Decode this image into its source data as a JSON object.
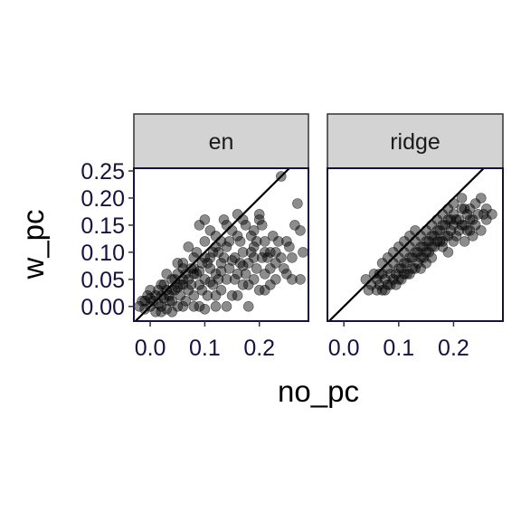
{
  "chart_data": {
    "type": "scatter",
    "xlabel": "no_pc",
    "ylabel": "w_pc",
    "xlim": [
      -0.03,
      0.29
    ],
    "ylim": [
      -0.027,
      0.255
    ],
    "x_ticks": [
      "0.0",
      "0.1",
      "0.2"
    ],
    "y_ticks": [
      "0.00",
      "0.05",
      "0.10",
      "0.15",
      "0.20",
      "0.25"
    ],
    "reference_line": "identity y = x",
    "point_color": "#000000",
    "point_opacity": 0.45,
    "strip_fill": "#d3d3d3",
    "panel_border_color": "#1a1040",
    "panels": [
      {
        "name": "en",
        "points": [
          [
            -0.02,
            0.0
          ],
          [
            -0.015,
            0.01
          ],
          [
            -0.01,
            -0.005
          ],
          [
            -0.005,
            0.02
          ],
          [
            0.0,
            0.0
          ],
          [
            0.0,
            0.03
          ],
          [
            0.005,
            0.01
          ],
          [
            0.01,
            -0.01
          ],
          [
            0.01,
            0.02
          ],
          [
            0.015,
            0.005
          ],
          [
            0.02,
            0.04
          ],
          [
            0.02,
            0.0
          ],
          [
            0.025,
            0.015
          ],
          [
            0.03,
            0.03
          ],
          [
            0.03,
            -0.005
          ],
          [
            0.035,
            0.02
          ],
          [
            0.04,
            0.05
          ],
          [
            0.04,
            0.01
          ],
          [
            0.045,
            0.03
          ],
          [
            0.05,
            0.0
          ],
          [
            0.05,
            0.06
          ],
          [
            0.055,
            0.02
          ],
          [
            0.06,
            0.04
          ],
          [
            0.06,
            0.08
          ],
          [
            0.065,
            0.01
          ],
          [
            0.07,
            0.05
          ],
          [
            0.07,
            0.03
          ],
          [
            0.075,
            0.07
          ],
          [
            0.08,
            0.02
          ],
          [
            0.08,
            0.06
          ],
          [
            0.085,
            0.1
          ],
          [
            0.09,
            0.04
          ],
          [
            0.09,
            0.0
          ],
          [
            0.095,
            0.08
          ],
          [
            0.1,
            0.05
          ],
          [
            0.1,
            0.12
          ],
          [
            0.105,
            0.02
          ],
          [
            0.11,
            0.07
          ],
          [
            0.11,
            0.09
          ],
          [
            0.115,
            0.04
          ],
          [
            0.12,
            0.06
          ],
          [
            0.12,
            0.13
          ],
          [
            0.125,
            0.1
          ],
          [
            0.13,
            0.03
          ],
          [
            0.13,
            0.08
          ],
          [
            0.135,
            0.16
          ],
          [
            0.14,
            0.05
          ],
          [
            0.14,
            0.11
          ],
          [
            0.145,
            0.07
          ],
          [
            0.15,
            0.14
          ],
          [
            0.15,
            0.02
          ],
          [
            0.155,
            0.09
          ],
          [
            0.16,
            0.06
          ],
          [
            0.16,
            0.17
          ],
          [
            0.165,
            0.12
          ],
          [
            0.17,
            0.04
          ],
          [
            0.17,
            0.1
          ],
          [
            0.175,
            0.15
          ],
          [
            0.18,
            0.08
          ],
          [
            0.18,
            0.0
          ],
          [
            0.185,
            0.13
          ],
          [
            0.19,
            0.05
          ],
          [
            0.19,
            0.11
          ],
          [
            0.195,
            0.07
          ],
          [
            0.2,
            0.16
          ],
          [
            0.2,
            0.03
          ],
          [
            0.205,
            0.09
          ],
          [
            0.21,
            0.06
          ],
          [
            0.21,
            0.12
          ],
          [
            0.22,
            0.1
          ],
          [
            0.22,
            0.04
          ],
          [
            0.23,
            0.08
          ],
          [
            0.235,
            0.12
          ],
          [
            0.24,
            0.24
          ],
          [
            0.25,
            0.06
          ],
          [
            0.255,
            0.11
          ],
          [
            0.26,
            0.05
          ],
          [
            0.265,
            0.15
          ],
          [
            0.27,
            0.19
          ],
          [
            0.275,
            0.14
          ],
          [
            0.275,
            0.05
          ],
          [
            0.28,
            0.1
          ],
          [
            0.08,
            0.0
          ],
          [
            0.1,
            -0.005
          ],
          [
            0.12,
            0.0
          ],
          [
            0.14,
            0.0
          ],
          [
            0.06,
            0.0
          ],
          [
            0.04,
            -0.01
          ],
          [
            0.02,
            -0.01
          ],
          [
            0.16,
            0.02
          ],
          [
            0.18,
            0.04
          ],
          [
            0.09,
            0.15
          ],
          [
            0.1,
            0.16
          ],
          [
            0.07,
            0.11
          ],
          [
            0.05,
            0.08
          ],
          [
            0.03,
            0.06
          ],
          [
            0.11,
            0.14
          ],
          [
            0.13,
            0.12
          ],
          [
            0.08,
            0.09
          ],
          [
            0.06,
            0.05
          ],
          [
            0.12,
            0.02
          ],
          [
            0.015,
            0.03
          ],
          [
            0.025,
            0.04
          ],
          [
            0.035,
            0.01
          ],
          [
            0.045,
            0.05
          ],
          [
            0.055,
            0.04
          ],
          [
            0.065,
            0.06
          ],
          [
            0.075,
            0.04
          ],
          [
            0.085,
            0.06
          ],
          [
            0.095,
            0.03
          ],
          [
            0.105,
            0.08
          ],
          [
            0.115,
            0.1
          ],
          [
            0.125,
            0.05
          ],
          [
            0.135,
            0.09
          ],
          [
            0.145,
            0.12
          ],
          [
            0.155,
            0.05
          ],
          [
            0.165,
            0.08
          ],
          [
            0.175,
            0.06
          ],
          [
            0.185,
            0.1
          ],
          [
            0.195,
            0.12
          ],
          [
            0.205,
            0.15
          ],
          [
            0.215,
            0.09
          ],
          [
            0.225,
            0.13
          ],
          [
            0.24,
            0.09
          ],
          [
            0.25,
            0.12
          ],
          [
            0.26,
            0.09
          ],
          [
            0.17,
            0.16
          ],
          [
            0.19,
            0.14
          ],
          [
            0.2,
            0.17
          ],
          [
            0.21,
            0.03
          ],
          [
            0.23,
            0.05
          ],
          [
            0.245,
            0.07
          ],
          [
            0.16,
            0.13
          ],
          [
            0.14,
            0.15
          ],
          [
            0.12,
            0.11
          ],
          [
            0.1,
            0.09
          ],
          [
            0.08,
            0.07
          ],
          [
            0.06,
            0.07
          ],
          [
            0.04,
            0.03
          ],
          [
            0.02,
            0.02
          ],
          [
            0.0,
            0.015
          ],
          [
            -0.01,
            0.01
          ],
          [
            0.05,
            0.035
          ],
          [
            0.09,
            0.065
          ],
          [
            0.11,
            0.045
          ],
          [
            0.13,
            0.065
          ],
          [
            0.15,
            0.085
          ],
          [
            0.17,
            0.075
          ],
          [
            0.19,
            0.09
          ],
          [
            0.21,
            0.1
          ],
          [
            0.22,
            0.07
          ],
          [
            0.23,
            0.1
          ]
        ]
      },
      {
        "name": "ridge",
        "points": [
          [
            0.04,
            0.05
          ],
          [
            0.045,
            0.03
          ],
          [
            0.05,
            0.04
          ],
          [
            0.055,
            0.06
          ],
          [
            0.06,
            0.03
          ],
          [
            0.06,
            0.05
          ],
          [
            0.065,
            0.04
          ],
          [
            0.07,
            0.06
          ],
          [
            0.07,
            0.03
          ],
          [
            0.075,
            0.05
          ],
          [
            0.08,
            0.07
          ],
          [
            0.08,
            0.04
          ],
          [
            0.085,
            0.06
          ],
          [
            0.09,
            0.05
          ],
          [
            0.09,
            0.08
          ],
          [
            0.095,
            0.04
          ],
          [
            0.1,
            0.07
          ],
          [
            0.1,
            0.09
          ],
          [
            0.105,
            0.05
          ],
          [
            0.11,
            0.08
          ],
          [
            0.11,
            0.1
          ],
          [
            0.115,
            0.06
          ],
          [
            0.12,
            0.09
          ],
          [
            0.12,
            0.11
          ],
          [
            0.125,
            0.07
          ],
          [
            0.13,
            0.1
          ],
          [
            0.13,
            0.12
          ],
          [
            0.135,
            0.08
          ],
          [
            0.14,
            0.11
          ],
          [
            0.14,
            0.13
          ],
          [
            0.145,
            0.09
          ],
          [
            0.15,
            0.12
          ],
          [
            0.15,
            0.14
          ],
          [
            0.155,
            0.1
          ],
          [
            0.16,
            0.13
          ],
          [
            0.16,
            0.15
          ],
          [
            0.165,
            0.11
          ],
          [
            0.17,
            0.14
          ],
          [
            0.17,
            0.16
          ],
          [
            0.175,
            0.12
          ],
          [
            0.18,
            0.15
          ],
          [
            0.18,
            0.17
          ],
          [
            0.185,
            0.13
          ],
          [
            0.19,
            0.16
          ],
          [
            0.19,
            0.18
          ],
          [
            0.195,
            0.14
          ],
          [
            0.2,
            0.15
          ],
          [
            0.2,
            0.17
          ],
          [
            0.205,
            0.13
          ],
          [
            0.21,
            0.16
          ],
          [
            0.21,
            0.14
          ],
          [
            0.215,
            0.18
          ],
          [
            0.22,
            0.15
          ],
          [
            0.22,
            0.12
          ],
          [
            0.225,
            0.17
          ],
          [
            0.23,
            0.14
          ],
          [
            0.23,
            0.16
          ],
          [
            0.235,
            0.13
          ],
          [
            0.24,
            0.19
          ],
          [
            0.24,
            0.15
          ],
          [
            0.25,
            0.2
          ],
          [
            0.25,
            0.14
          ],
          [
            0.26,
            0.18
          ],
          [
            0.26,
            0.16
          ],
          [
            0.27,
            0.17
          ],
          [
            0.13,
            0.14
          ],
          [
            0.12,
            0.13
          ],
          [
            0.11,
            0.12
          ],
          [
            0.1,
            0.11
          ],
          [
            0.09,
            0.1
          ],
          [
            0.08,
            0.09
          ],
          [
            0.07,
            0.08
          ],
          [
            0.14,
            0.09
          ],
          [
            0.15,
            0.1
          ],
          [
            0.16,
            0.11
          ],
          [
            0.17,
            0.12
          ],
          [
            0.18,
            0.12
          ],
          [
            0.19,
            0.13
          ],
          [
            0.2,
            0.12
          ],
          [
            0.085,
            0.04
          ],
          [
            0.095,
            0.06
          ],
          [
            0.105,
            0.07
          ],
          [
            0.115,
            0.08
          ],
          [
            0.125,
            0.09
          ],
          [
            0.135,
            0.1
          ],
          [
            0.145,
            0.11
          ],
          [
            0.155,
            0.12
          ],
          [
            0.165,
            0.13
          ],
          [
            0.175,
            0.14
          ],
          [
            0.185,
            0.15
          ],
          [
            0.195,
            0.16
          ],
          [
            0.205,
            0.16
          ],
          [
            0.215,
            0.15
          ],
          [
            0.225,
            0.14
          ],
          [
            0.235,
            0.16
          ],
          [
            0.245,
            0.17
          ],
          [
            0.255,
            0.17
          ],
          [
            0.12,
            0.06
          ],
          [
            0.13,
            0.07
          ],
          [
            0.14,
            0.07
          ],
          [
            0.1,
            0.05
          ],
          [
            0.11,
            0.06
          ],
          [
            0.075,
            0.03
          ],
          [
            0.065,
            0.06
          ],
          [
            0.215,
            0.2
          ],
          [
            0.2,
            0.19
          ],
          [
            0.18,
            0.11
          ],
          [
            0.16,
            0.09
          ],
          [
            0.15,
            0.08
          ],
          [
            0.22,
            0.18
          ],
          [
            0.23,
            0.18
          ],
          [
            0.19,
            0.1
          ]
        ]
      }
    ]
  }
}
